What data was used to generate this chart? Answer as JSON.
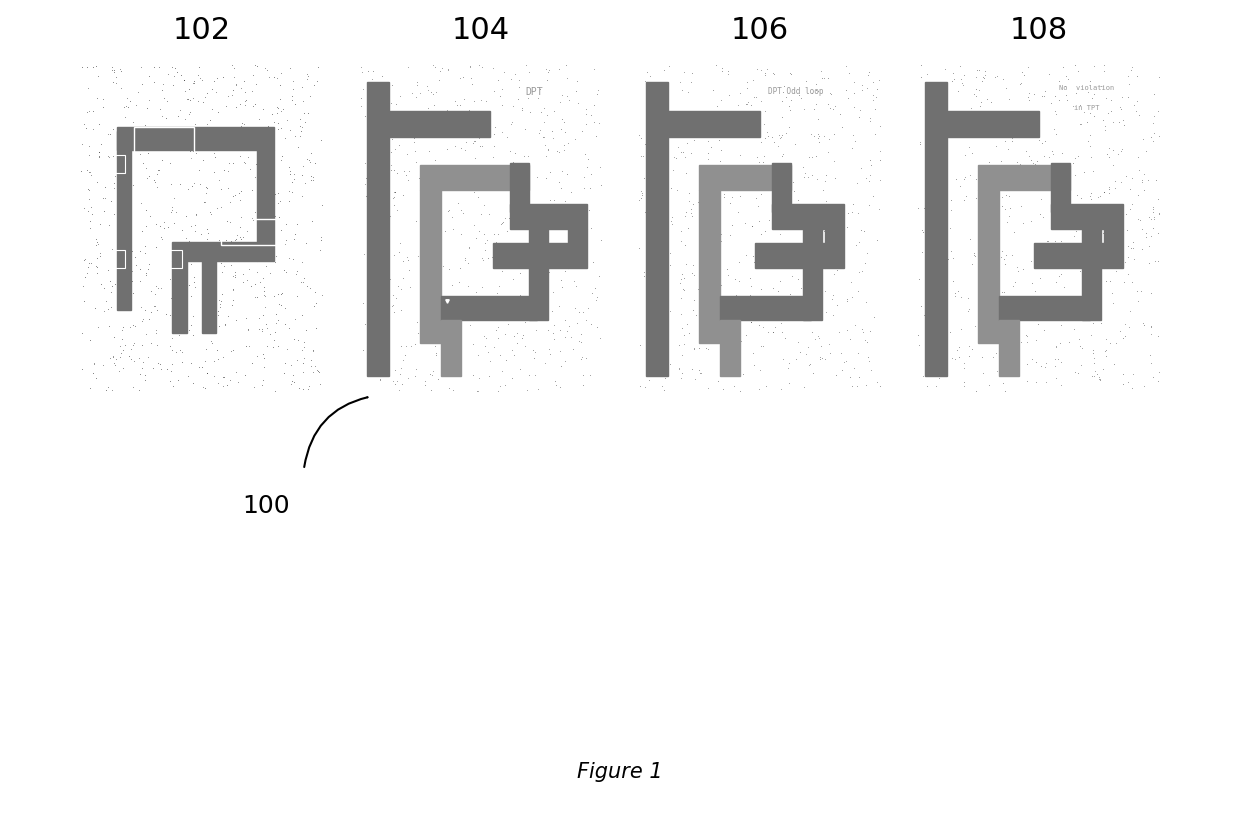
{
  "figure_label": "Figure 1",
  "panel_labels": [
    "102",
    "104",
    "106",
    "108"
  ],
  "background": "#ffffff",
  "label_100": "100",
  "panel_gray1": "#707070",
  "panel_gray2": "#909090",
  "panel_gray3": "#555555",
  "text_color": "#999999"
}
